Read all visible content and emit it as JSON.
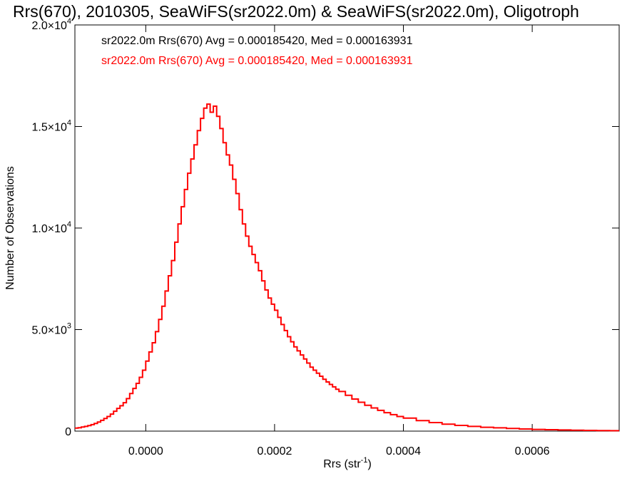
{
  "chart_data": {
    "type": "line",
    "step": true,
    "title": "Rrs(670), 2010305, SeaWiFS(sr2022.0m) & SeaWiFS(sr2022.0m), Oligotroph",
    "xlabel": "Rrs (str",
    "xlabel_sup": "-1",
    "xlabel_tail": ")",
    "ylabel": "Number of Observations",
    "xlim": [
      -0.00011,
      0.000735
    ],
    "ylim": [
      0,
      20000
    ],
    "x_ticks": [
      {
        "value": 0.0,
        "label": "0.0000"
      },
      {
        "value": 0.0002,
        "label": "0.0002"
      },
      {
        "value": 0.0004,
        "label": "0.0004"
      },
      {
        "value": 0.0006,
        "label": "0.0006"
      }
    ],
    "y_ticks": [
      {
        "value": 0,
        "mant": "0",
        "exp": ""
      },
      {
        "value": 5000,
        "mant": "5.0×10",
        "exp": "3"
      },
      {
        "value": 10000,
        "mant": "1.0×10",
        "exp": "4"
      },
      {
        "value": 15000,
        "mant": "1.5×10",
        "exp": "4"
      },
      {
        "value": 20000,
        "mant": "2.0×10",
        "exp": "4"
      }
    ],
    "legend": [
      {
        "text": "sr2022.0m Rrs(670) Avg = 0.000185420, Med = 0.000163931",
        "color": "#000000"
      },
      {
        "text": "sr2022.0m Rrs(670) Avg = 0.000185420, Med = 0.000163931",
        "color": "#ff0000"
      }
    ],
    "legend_placement": "top-left",
    "series_color": "#ff0000",
    "series": [
      {
        "x": [
          -0.00011,
          -0.000105,
          -0.0001,
          -9.5e-05,
          -9e-05,
          -8.5e-05,
          -8e-05,
          -7.5e-05,
          -7e-05,
          -6.5e-05,
          -6e-05,
          -5.5e-05,
          -5e-05,
          -4.5e-05,
          -4e-05,
          -3.5e-05,
          -3e-05,
          -2.5e-05,
          -2e-05,
          -1.5e-05,
          -1e-05,
          -5e-06,
          0.0,
          5e-06,
          1e-05,
          1.5e-05,
          2e-05,
          2.5e-05,
          3e-05,
          3.5e-05,
          4e-05,
          4.5e-05,
          5e-05,
          5.5e-05,
          6e-05,
          6.5e-05,
          7e-05,
          7.5e-05,
          8e-05,
          8.5e-05,
          9e-05,
          9.5e-05,
          0.0001,
          0.000105,
          0.00011,
          0.000115,
          0.00012,
          0.000125,
          0.00013,
          0.000135,
          0.00014,
          0.000145,
          0.00015,
          0.000155,
          0.00016,
          0.000165,
          0.00017,
          0.000175,
          0.00018,
          0.000185,
          0.00019,
          0.000195,
          0.0002,
          0.000205,
          0.00021,
          0.000215,
          0.00022,
          0.000225,
          0.00023,
          0.000235,
          0.00024,
          0.000245,
          0.00025,
          0.000255,
          0.00026,
          0.000265,
          0.00027,
          0.000275,
          0.00028,
          0.000285,
          0.00029,
          0.000295,
          0.0003,
          0.00031,
          0.00032,
          0.00033,
          0.00034,
          0.00035,
          0.00036,
          0.00037,
          0.00038,
          0.00039,
          0.0004,
          0.00042,
          0.00044,
          0.00046,
          0.00048,
          0.0005,
          0.00052,
          0.00054,
          0.00056,
          0.00058,
          0.0006,
          0.00062,
          0.00064,
          0.00066,
          0.00068,
          0.0007,
          0.00072
        ],
        "y": [
          150,
          170,
          200,
          230,
          270,
          320,
          380,
          450,
          530,
          620,
          720,
          840,
          980,
          1120,
          1250,
          1400,
          1600,
          1850,
          2100,
          2350,
          2650,
          3000,
          3450,
          3900,
          4350,
          4900,
          5500,
          6150,
          6900,
          7650,
          8400,
          9300,
          10200,
          11050,
          11900,
          12700,
          13400,
          14100,
          14800,
          15400,
          15900,
          16100,
          15700,
          16000,
          15500,
          14900,
          14200,
          13600,
          13100,
          12400,
          11700,
          10900,
          10200,
          9600,
          9100,
          8700,
          8300,
          7900,
          7400,
          6950,
          6550,
          6250,
          5950,
          5600,
          5250,
          4950,
          4650,
          4400,
          4150,
          3950,
          3750,
          3550,
          3350,
          3150,
          3000,
          2850,
          2700,
          2550,
          2420,
          2300,
          2180,
          2060,
          1950,
          1760,
          1580,
          1420,
          1270,
          1140,
          1020,
          910,
          810,
          720,
          640,
          520,
          420,
          340,
          280,
          230,
          190,
          160,
          130,
          105,
          85,
          70,
          55,
          45,
          35,
          25,
          20
        ]
      }
    ]
  }
}
